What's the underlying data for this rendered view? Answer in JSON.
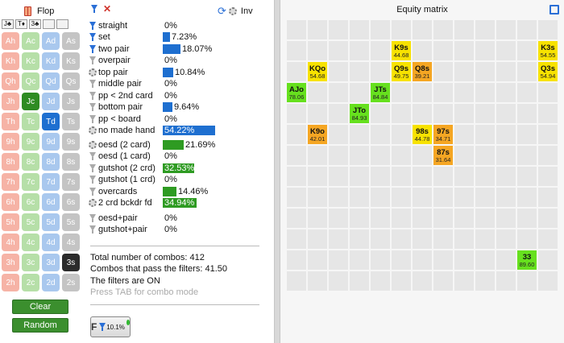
{
  "left": {
    "title": "Flop",
    "board": [
      "J♣",
      "T♦",
      "3♣",
      "",
      ""
    ],
    "card_rows": [
      [
        {
          "label": "Ah",
          "color": "#f6b3a6"
        },
        {
          "label": "Ac",
          "color": "#b6dfa8"
        },
        {
          "label": "Ad",
          "color": "#a9c8ee"
        },
        {
          "label": "As",
          "color": "#c4c4c4"
        }
      ],
      [
        {
          "label": "Kh",
          "color": "#f6b3a6"
        },
        {
          "label": "Kc",
          "color": "#b6dfa8"
        },
        {
          "label": "Kd",
          "color": "#a9c8ee"
        },
        {
          "label": "Ks",
          "color": "#c4c4c4"
        }
      ],
      [
        {
          "label": "Qh",
          "color": "#f6b3a6"
        },
        {
          "label": "Qc",
          "color": "#b6dfa8"
        },
        {
          "label": "Qd",
          "color": "#a9c8ee"
        },
        {
          "label": "Qs",
          "color": "#c4c4c4"
        }
      ],
      [
        {
          "label": "Jh",
          "color": "#f6b3a6"
        },
        {
          "label": "Jc",
          "color": "#2e8b22"
        },
        {
          "label": "Jd",
          "color": "#a9c8ee"
        },
        {
          "label": "Js",
          "color": "#c4c4c4"
        }
      ],
      [
        {
          "label": "Th",
          "color": "#f6b3a6"
        },
        {
          "label": "Tc",
          "color": "#b6dfa8"
        },
        {
          "label": "Td",
          "color": "#1e6fd0"
        },
        {
          "label": "Ts",
          "color": "#c4c4c4"
        }
      ],
      [
        {
          "label": "9h",
          "color": "#f6b3a6"
        },
        {
          "label": "9c",
          "color": "#b6dfa8"
        },
        {
          "label": "9d",
          "color": "#a9c8ee"
        },
        {
          "label": "9s",
          "color": "#c4c4c4"
        }
      ],
      [
        {
          "label": "8h",
          "color": "#f6b3a6"
        },
        {
          "label": "8c",
          "color": "#b6dfa8"
        },
        {
          "label": "8d",
          "color": "#a9c8ee"
        },
        {
          "label": "8s",
          "color": "#c4c4c4"
        }
      ],
      [
        {
          "label": "7h",
          "color": "#f6b3a6"
        },
        {
          "label": "7c",
          "color": "#b6dfa8"
        },
        {
          "label": "7d",
          "color": "#a9c8ee"
        },
        {
          "label": "7s",
          "color": "#c4c4c4"
        }
      ],
      [
        {
          "label": "6h",
          "color": "#f6b3a6"
        },
        {
          "label": "6c",
          "color": "#b6dfa8"
        },
        {
          "label": "6d",
          "color": "#a9c8ee"
        },
        {
          "label": "6s",
          "color": "#c4c4c4"
        }
      ],
      [
        {
          "label": "5h",
          "color": "#f6b3a6"
        },
        {
          "label": "5c",
          "color": "#b6dfa8"
        },
        {
          "label": "5d",
          "color": "#a9c8ee"
        },
        {
          "label": "5s",
          "color": "#c4c4c4"
        }
      ],
      [
        {
          "label": "4h",
          "color": "#f6b3a6"
        },
        {
          "label": "4c",
          "color": "#b6dfa8"
        },
        {
          "label": "4d",
          "color": "#a9c8ee"
        },
        {
          "label": "4s",
          "color": "#c4c4c4"
        }
      ],
      [
        {
          "label": "3h",
          "color": "#f6b3a6"
        },
        {
          "label": "3c",
          "color": "#b6dfa8"
        },
        {
          "label": "3d",
          "color": "#a9c8ee"
        },
        {
          "label": "3s",
          "color": "#2b2b2b"
        }
      ],
      [
        {
          "label": "2h",
          "color": "#f6b3a6"
        },
        {
          "label": "2c",
          "color": "#b6dfa8"
        },
        {
          "label": "2d",
          "color": "#a9c8ee"
        },
        {
          "label": "2s",
          "color": "#c4c4c4"
        }
      ]
    ],
    "clear_label": "Clear",
    "random_label": "Random"
  },
  "filters": {
    "inv_label": "Inv",
    "groups": [
      [
        {
          "label": "straight",
          "pct": "0%",
          "value": 0,
          "icon": "funnel-blue-icon",
          "color": "#1e6fd0"
        },
        {
          "label": "set",
          "pct": "7.23%",
          "value": 7.23,
          "icon": "funnel-blue-icon",
          "color": "#1e6fd0"
        },
        {
          "label": "two pair",
          "pct": "18.07%",
          "value": 18.07,
          "icon": "funnel-blue-icon",
          "color": "#1e6fd0"
        },
        {
          "label": "overpair",
          "pct": "0%",
          "value": 0,
          "icon": "funnel-gray-icon",
          "color": "#1e6fd0"
        },
        {
          "label": "top pair",
          "pct": "10.84%",
          "value": 10.84,
          "icon": "gear-icon",
          "color": "#1e6fd0"
        },
        {
          "label": "middle pair",
          "pct": "0%",
          "value": 0,
          "icon": "funnel-gray-icon",
          "color": "#1e6fd0"
        },
        {
          "label": "pp < 2nd card",
          "pct": "0%",
          "value": 0,
          "icon": "funnel-gray-icon",
          "color": "#1e6fd0"
        },
        {
          "label": "bottom pair",
          "pct": "9.64%",
          "value": 9.64,
          "icon": "funnel-gray-icon",
          "color": "#1e6fd0"
        },
        {
          "label": "pp < board",
          "pct": "0%",
          "value": 0,
          "icon": "funnel-gray-icon",
          "color": "#1e6fd0"
        },
        {
          "label": "no made hand",
          "pct": "54.22%",
          "value": 54.22,
          "icon": "gear-icon",
          "color": "#1e6fd0"
        }
      ],
      [
        {
          "label": "oesd (2 card)",
          "pct": "21.69%",
          "value": 21.69,
          "icon": "gear-icon",
          "color": "#2e9b22"
        },
        {
          "label": "oesd (1 card)",
          "pct": "0%",
          "value": 0,
          "icon": "funnel-gray-icon",
          "color": "#2e9b22"
        },
        {
          "label": "gutshot (2 crd)",
          "pct": "32.53%",
          "value": 32.53,
          "icon": "funnel-gray-icon",
          "color": "#2e9b22"
        },
        {
          "label": "gutshot (1 crd)",
          "pct": "0%",
          "value": 0,
          "icon": "funnel-gray-icon",
          "color": "#2e9b22"
        },
        {
          "label": "overcards",
          "pct": "14.46%",
          "value": 14.46,
          "icon": "funnel-gray-icon",
          "color": "#2e9b22"
        },
        {
          "label": "2 crd bckdr fd",
          "pct": "34.94%",
          "value": 34.94,
          "icon": "gear-icon",
          "color": "#2e9b22"
        }
      ],
      [
        {
          "label": "oesd+pair",
          "pct": "0%",
          "value": 0,
          "icon": "funnel-gray-icon",
          "color": "#2e9b22"
        },
        {
          "label": "gutshot+pair",
          "pct": "0%",
          "value": 0,
          "icon": "funnel-gray-icon",
          "color": "#2e9b22"
        }
      ]
    ],
    "stats": {
      "total": "Total number of combos: 412",
      "pass": "Combos that pass the filters: 41.50",
      "on": "The filters are ON",
      "hint": "Press TAB for combo mode"
    },
    "f_button": {
      "letter": "F",
      "pct": "10.1%"
    }
  },
  "matrix": {
    "title": "Equity matrix",
    "cells": [
      {
        "hand": "K9s",
        "eq": "44.68",
        "row": 1,
        "col": 5,
        "color": "#f7e200"
      },
      {
        "hand": "K3s",
        "eq": "54.55",
        "row": 1,
        "col": 12,
        "color": "#f7e200"
      },
      {
        "hand": "KQo",
        "eq": "54.68",
        "row": 2,
        "col": 1,
        "color": "#f7e200"
      },
      {
        "hand": "Q9s",
        "eq": "49.75",
        "row": 2,
        "col": 5,
        "color": "#f7e200"
      },
      {
        "hand": "Q8s",
        "eq": "39.21",
        "row": 2,
        "col": 6,
        "color": "#f5a623"
      },
      {
        "hand": "Q3s",
        "eq": "54.94",
        "row": 2,
        "col": 12,
        "color": "#f7e200"
      },
      {
        "hand": "AJo",
        "eq": "78.06",
        "row": 3,
        "col": 0,
        "color": "#66e01e"
      },
      {
        "hand": "JTs",
        "eq": "84.84",
        "row": 3,
        "col": 4,
        "color": "#66e01e"
      },
      {
        "hand": "JTo",
        "eq": "84.93",
        "row": 4,
        "col": 3,
        "color": "#66e01e"
      },
      {
        "hand": "K9o",
        "eq": "42.01",
        "row": 5,
        "col": 1,
        "color": "#f5a623"
      },
      {
        "hand": "98s",
        "eq": "44.78",
        "row": 5,
        "col": 6,
        "color": "#f7e200"
      },
      {
        "hand": "97s",
        "eq": "34.71",
        "row": 5,
        "col": 7,
        "color": "#f5a623"
      },
      {
        "hand": "87s",
        "eq": "31.64",
        "row": 6,
        "col": 7,
        "color": "#f5a623"
      },
      {
        "hand": "33",
        "eq": "89.60",
        "row": 11,
        "col": 11,
        "color": "#66e01e"
      }
    ]
  }
}
